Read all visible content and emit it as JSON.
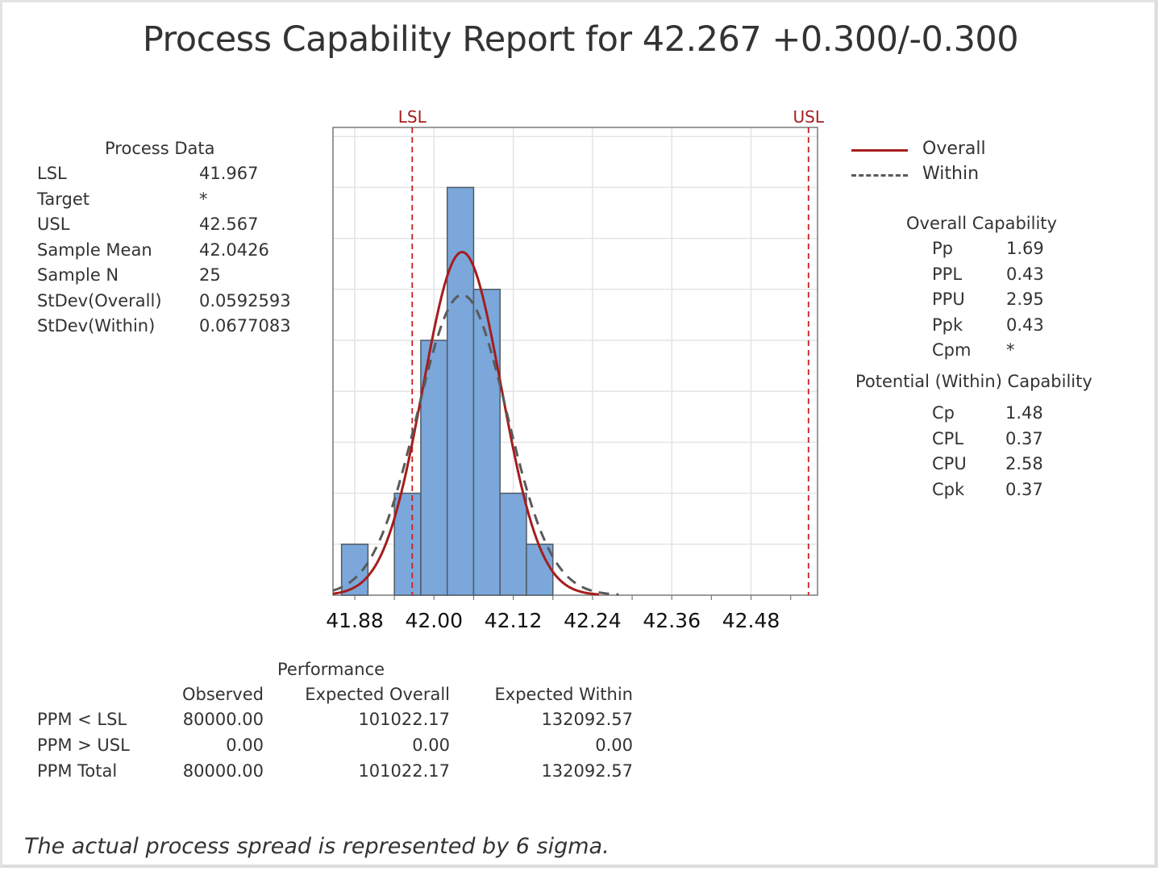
{
  "title": "Process Capability Report for 42.267 +0.300/-0.300",
  "process_data": {
    "heading": "Process Data",
    "rows": [
      {
        "label": "LSL",
        "value": "41.967"
      },
      {
        "label": "Target",
        "value": "*"
      },
      {
        "label": "USL",
        "value": "42.567"
      },
      {
        "label": "Sample Mean",
        "value": "42.0426"
      },
      {
        "label": "Sample N",
        "value": "25"
      },
      {
        "label": "StDev(Overall)",
        "value": "0.0592593"
      },
      {
        "label": "StDev(Within)",
        "value": "0.0677083"
      }
    ]
  },
  "legend": [
    {
      "label": "Overall",
      "style": "solid",
      "color": "#a51d1d"
    },
    {
      "label": "Within",
      "style": "dashed",
      "color": "#5a5a5a"
    }
  ],
  "overall_capability": {
    "heading": "Overall Capability",
    "rows": [
      {
        "label": "Pp",
        "value": "1.69"
      },
      {
        "label": "PPL",
        "value": "0.43"
      },
      {
        "label": "PPU",
        "value": "2.95"
      },
      {
        "label": "Ppk",
        "value": "0.43"
      },
      {
        "label": "Cpm",
        "value": "*"
      }
    ]
  },
  "potential_capability": {
    "heading": "Potential (Within) Capability",
    "rows": [
      {
        "label": "Cp",
        "value": "1.48"
      },
      {
        "label": "CPL",
        "value": "0.37"
      },
      {
        "label": "CPU",
        "value": "2.58"
      },
      {
        "label": "Cpk",
        "value": "0.37"
      }
    ]
  },
  "performance": {
    "heading": "Performance",
    "columns": [
      "Observed",
      "Expected Overall",
      "Expected Within"
    ],
    "rows": [
      {
        "label": "PPM < LSL",
        "values": [
          "80000.00",
          "101022.17",
          "132092.57"
        ]
      },
      {
        "label": "PPM > USL",
        "values": [
          "0.00",
          "0.00",
          "0.00"
        ]
      },
      {
        "label": "PPM Total",
        "values": [
          "80000.00",
          "101022.17",
          "132092.57"
        ]
      }
    ]
  },
  "footnote": "The actual process spread is represented by 6 sigma.",
  "colors": {
    "bar_fill": "#7ba7da",
    "bar_stroke": "#505a66",
    "overall_curve": "#a51d1d",
    "within_curve": "#5a5a5a",
    "spec_line": "#cc1f1f",
    "spec_label": "#a51d1d",
    "grid": "#e4e4e4",
    "axis": "#7a7a7a"
  },
  "chart_data": {
    "type": "bar",
    "title": "Process Capability Report for 42.267 +0.300/-0.300",
    "xlabel": "",
    "ylabel": "",
    "bin_width": 0.04,
    "bin_edges": [
      41.86,
      41.9,
      41.94,
      41.98,
      42.02,
      42.06,
      42.1,
      42.14,
      42.18
    ],
    "categories": [
      "41.86-41.90",
      "41.90-41.94",
      "41.94-41.98",
      "41.98-42.02",
      "42.02-42.06",
      "42.06-42.10",
      "42.10-42.14",
      "42.14-42.18"
    ],
    "values": [
      1,
      0,
      2,
      5,
      8,
      6,
      2,
      1
    ],
    "xlim": [
      41.847,
      42.58
    ],
    "ylim": [
      0,
      9.2
    ],
    "x_ticks": [
      "41.88",
      "42.00",
      "42.12",
      "42.24",
      "42.36",
      "42.48"
    ],
    "y_ticks_labeled": false,
    "grid": true,
    "spec_lines": [
      {
        "label": "LSL",
        "x": 41.967
      },
      {
        "label": "USL",
        "x": 42.567
      }
    ],
    "series": [
      {
        "name": "Overall",
        "type": "normal_curve",
        "mean": 42.0426,
        "stdev": 0.0592593
      },
      {
        "name": "Within",
        "type": "normal_curve",
        "mean": 42.0426,
        "stdev": 0.0677083
      }
    ],
    "sample_n": 25,
    "legend_position": "right"
  }
}
